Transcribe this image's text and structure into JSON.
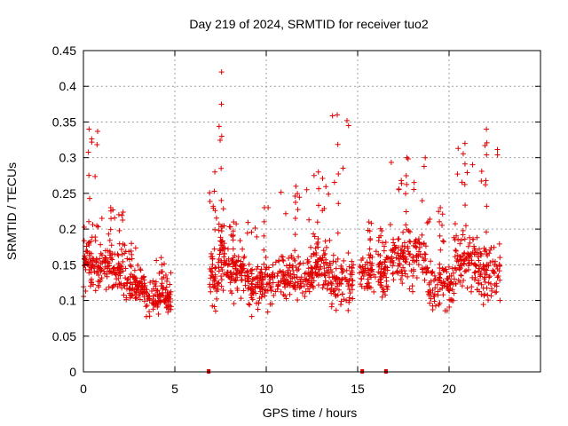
{
  "chart_data": {
    "type": "scatter",
    "title": "Day 219 of 2024, SRMTID for receiver tuo2",
    "xlabel": "GPS time / hours",
    "ylabel": "SRMTID / TECUs",
    "xlim": [
      0,
      25
    ],
    "ylim": [
      0,
      0.45
    ],
    "xticks": [
      "0",
      "5",
      "10",
      "15",
      "20"
    ],
    "yticks": [
      "0",
      "0.05",
      "0.1",
      "0.15",
      "0.2",
      "0.25",
      "0.3",
      "0.35",
      "0.4",
      "0.45"
    ],
    "grid": true,
    "marker": "plus",
    "color": "#e00000",
    "segments": [
      {
        "start": 0.0,
        "end": 0.8,
        "base": 0.16,
        "spread": 0.07,
        "peak": 0.34,
        "count": 70
      },
      {
        "start": 0.8,
        "end": 2.2,
        "base": 0.145,
        "spread": 0.05,
        "peak": 0.23,
        "count": 110
      },
      {
        "start": 2.2,
        "end": 3.4,
        "base": 0.12,
        "spread": 0.04,
        "peak": 0.18,
        "count": 95
      },
      {
        "start": 3.4,
        "end": 4.8,
        "base": 0.105,
        "spread": 0.04,
        "peak": 0.16,
        "count": 100
      },
      {
        "start": 6.9,
        "end": 7.4,
        "base": 0.13,
        "spread": 0.06,
        "peak": 0.28,
        "count": 45
      },
      {
        "start": 7.4,
        "end": 7.8,
        "base": 0.17,
        "spread": 0.08,
        "peak": 0.42,
        "count": 45
      },
      {
        "start": 7.8,
        "end": 9.0,
        "base": 0.14,
        "spread": 0.05,
        "peak": 0.21,
        "count": 90
      },
      {
        "start": 9.0,
        "end": 10.5,
        "base": 0.12,
        "spread": 0.05,
        "peak": 0.23,
        "count": 110
      },
      {
        "start": 10.5,
        "end": 12.5,
        "base": 0.135,
        "spread": 0.05,
        "peak": 0.26,
        "count": 140
      },
      {
        "start": 12.5,
        "end": 13.5,
        "base": 0.15,
        "spread": 0.06,
        "peak": 0.28,
        "count": 80
      },
      {
        "start": 13.5,
        "end": 14.8,
        "base": 0.13,
        "spread": 0.06,
        "peak": 0.36,
        "count": 90
      },
      {
        "start": 15.1,
        "end": 16.8,
        "base": 0.14,
        "spread": 0.05,
        "peak": 0.21,
        "count": 115
      },
      {
        "start": 16.8,
        "end": 18.8,
        "base": 0.16,
        "spread": 0.06,
        "peak": 0.3,
        "count": 140
      },
      {
        "start": 18.8,
        "end": 20.3,
        "base": 0.12,
        "spread": 0.05,
        "peak": 0.23,
        "count": 100
      },
      {
        "start": 20.3,
        "end": 21.5,
        "base": 0.16,
        "spread": 0.07,
        "peak": 0.32,
        "count": 90
      },
      {
        "start": 21.5,
        "end": 22.8,
        "base": 0.14,
        "spread": 0.06,
        "peak": 0.34,
        "count": 95
      }
    ],
    "baseline_markers": [
      6.85,
      15.25,
      16.55
    ]
  }
}
